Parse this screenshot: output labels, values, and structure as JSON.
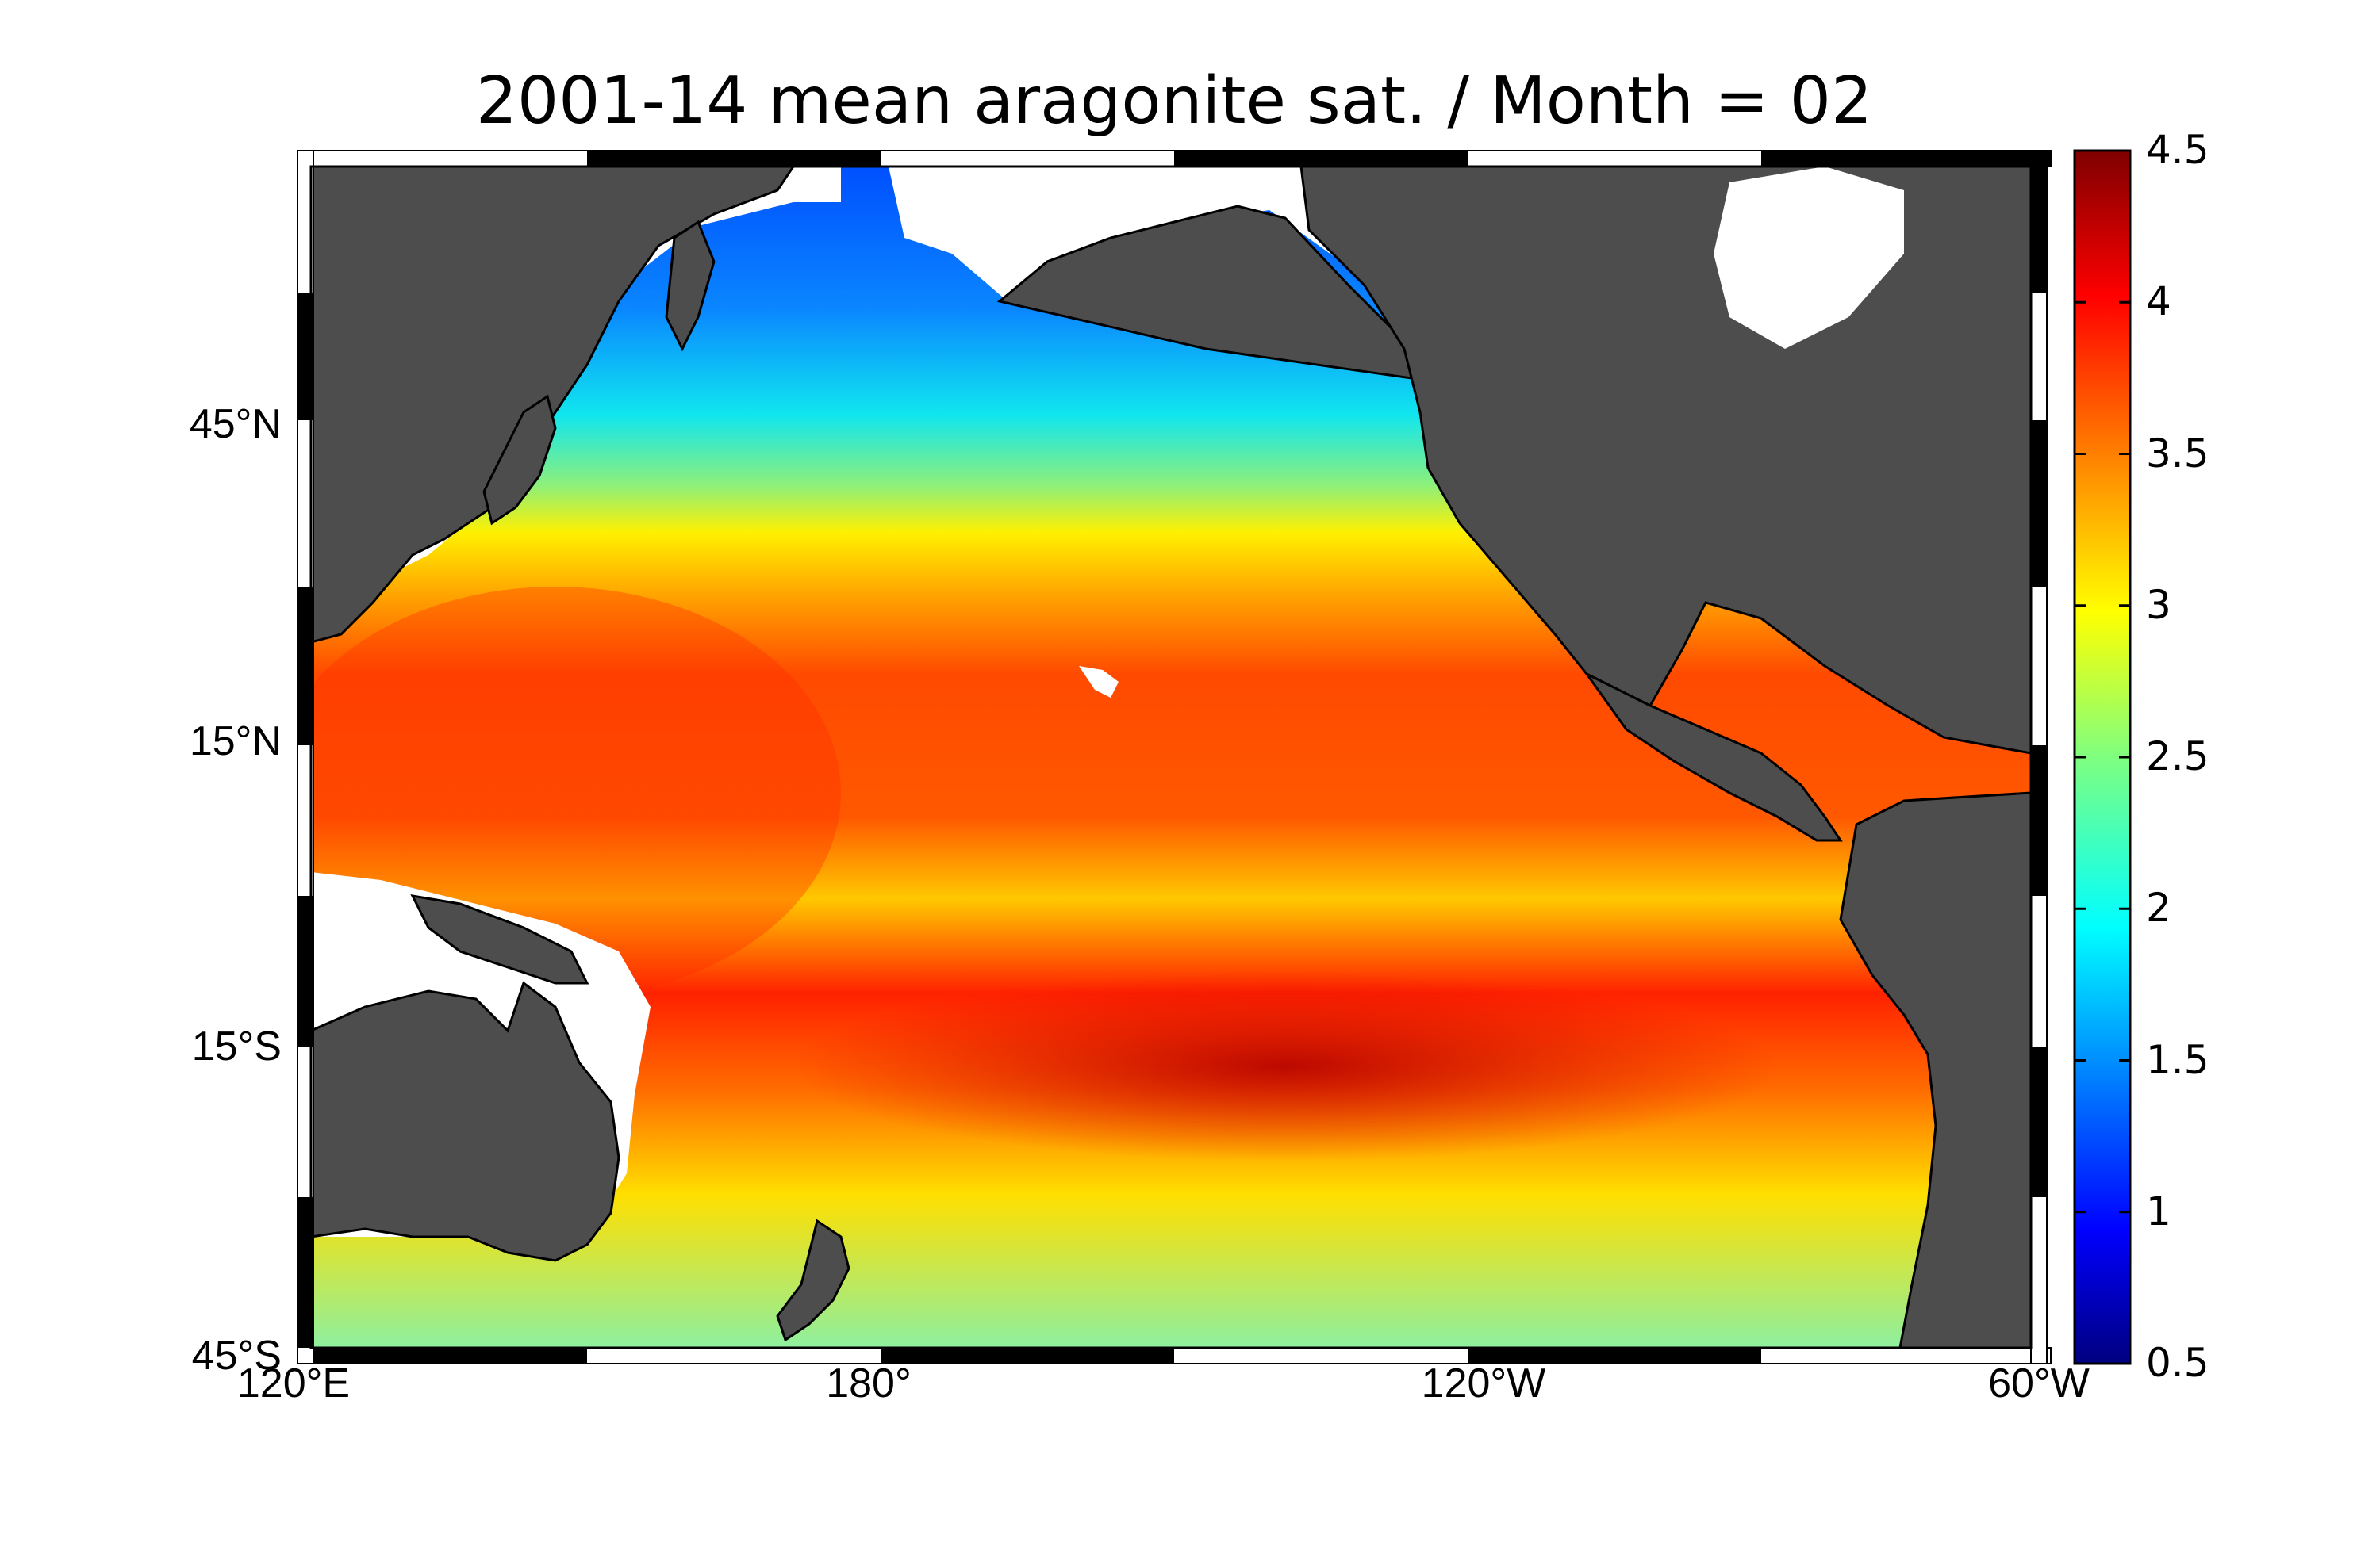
{
  "title": "2001-14 mean aragonite sat. / Month = 02",
  "map": {
    "lon_range": [
      "120°E",
      "60°W"
    ],
    "lat_range": [
      "45°S",
      "60°N"
    ],
    "lat_labels": [
      "45°N",
      "15°N",
      "15°S",
      "45°S"
    ],
    "lon_labels": [
      "120°E",
      "180°",
      "120°W",
      "60°W"
    ],
    "land_color": "#4d4d4d",
    "missing_color": "#ffffff",
    "colormap": "jet"
  },
  "colorbar": {
    "ticks": [
      "4.5",
      "4",
      "3.5",
      "3",
      "2.5",
      "2",
      "1.5",
      "1",
      "0.5"
    ],
    "min": 0.5,
    "max": 4.5
  }
}
